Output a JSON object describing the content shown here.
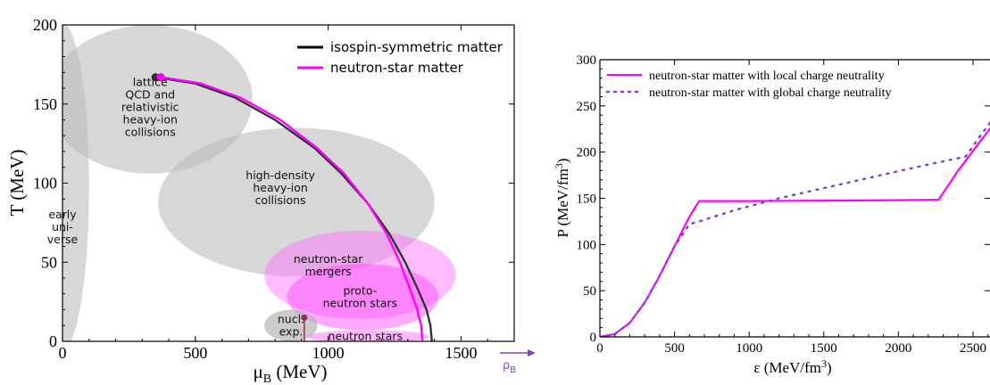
{
  "chart_data": [
    {
      "type": "line",
      "title": "",
      "xlabel": "μ",
      "xlabel_sub": "B",
      "xlabel_unit": " (MeV)",
      "ylabel": "T (MeV)",
      "xlim": [
        0,
        1700
      ],
      "ylim": [
        0,
        200
      ],
      "x_ticks": [
        "0",
        "500",
        "1000",
        "1500"
      ],
      "y_ticks": [
        "0",
        "50",
        "100",
        "150",
        "200"
      ],
      "arrow_label": "ρ",
      "arrow_label_sub": "B",
      "colors": {
        "isospin": "#000000",
        "neutron_star": "#ff00ff",
        "arrow": "#8a3cc8",
        "region_gray": "#c8c8c8",
        "region_pink": "#ff80ff"
      },
      "legend_position": "top-right",
      "series": [
        {
          "name": "isospin-symmetric matter",
          "x": [
            350,
            500,
            650,
            800,
            950,
            1050,
            1150,
            1230,
            1290,
            1340,
            1370,
            1385,
            1390
          ],
          "y": [
            167,
            163,
            154,
            140,
            122,
            106,
            87,
            68,
            50,
            32,
            20,
            10,
            0
          ]
        },
        {
          "name": "neutron-star matter",
          "x": [
            370,
            520,
            670,
            820,
            960,
            1060,
            1150,
            1220,
            1270,
            1310,
            1335,
            1350,
            1355
          ],
          "y": [
            167,
            163,
            154,
            140,
            122,
            106,
            87,
            68,
            50,
            32,
            20,
            10,
            0
          ]
        }
      ],
      "critical_points": [
        {
          "series": "isospin-symmetric matter",
          "x": 350,
          "y": 167
        },
        {
          "series": "neutron-star matter",
          "x": 370,
          "y": 167
        }
      ],
      "nuclear_point": {
        "x": 910,
        "y": 15
      },
      "regions": [
        {
          "label": "early uni- verse",
          "lines": [
            "early",
            "uni-",
            "verse"
          ],
          "fill": "gray",
          "cx": 0,
          "cy": 98,
          "rx": 100,
          "ry": 103
        },
        {
          "label": "lattice QCD and relativistic heavy-ion collisions",
          "lines": [
            "lattice",
            "QCD and",
            "relativistic",
            "heavy-ion",
            "collisions"
          ],
          "fill": "gray",
          "cx": 330,
          "cy": 153,
          "rx": 385,
          "ry": 47
        },
        {
          "label": "high-density heavy-ion collisions",
          "lines": [
            "high-density",
            "heavy-ion",
            "collisions"
          ],
          "fill": "gray",
          "cx": 880,
          "cy": 88,
          "rx": 520,
          "ry": 47
        },
        {
          "label": "neutron-star mergers",
          "lines": [
            "neutron-star",
            "mergers"
          ],
          "fill": "pink",
          "cx": 1120,
          "cy": 42,
          "rx": 360,
          "ry": 28
        },
        {
          "label": "proto- neutron stars",
          "lines": [
            "proto-",
            "neutron stars"
          ],
          "fill": "pinkdark",
          "cx": 1130,
          "cy": 28,
          "rx": 285,
          "ry": 21
        },
        {
          "label": "nucl. exp.",
          "lines": [
            "nucl.",
            "exp."
          ],
          "fill": "grayalt",
          "cx": 860,
          "cy": 10,
          "rx": 100,
          "ry": 10
        },
        {
          "label": "neutron stars",
          "lines": [
            "neutron stars"
          ],
          "fill": "pinkflat",
          "cx": 1150,
          "cy": 3,
          "rx": 230,
          "ry": 4
        }
      ]
    },
    {
      "type": "line",
      "title": "",
      "xlabel": "ε (MeV/fm",
      "xlabel_sup": "3",
      "xlabel_end": ")",
      "ylabel": "P (MeV/fm",
      "ylabel_sup": "3",
      "ylabel_end": ")",
      "xlim": [
        0,
        2700
      ],
      "ylim": [
        0,
        300
      ],
      "x_ticks": [
        "0",
        "500",
        "1000",
        "1500",
        "2000",
        "2500"
      ],
      "y_ticks": [
        "0",
        "50",
        "100",
        "150",
        "200",
        "250",
        "300"
      ],
      "legend_position": "top-left",
      "series": [
        {
          "name": "neutron-star matter with local charge neutrality",
          "style": "solid",
          "color": "#ff00ff",
          "x": [
            0,
            100,
            200,
            300,
            400,
            500,
            600,
            665,
            1000,
            1500,
            2000,
            2270,
            2400,
            2550,
            2700
          ],
          "y": [
            0,
            3,
            15,
            37,
            66,
            98,
            130,
            147,
            147,
            147.5,
            148,
            148.5,
            180,
            212,
            243
          ]
        },
        {
          "name": "neutron-star matter with global charge neutrality",
          "style": "dotted",
          "color": "#7b3fd1",
          "x": [
            0,
            100,
            200,
            300,
            400,
            500,
            600,
            665,
            900,
            1200,
            1500,
            1800,
            2100,
            2300,
            2450,
            2550,
            2700
          ],
          "y": [
            0,
            3,
            15,
            37,
            66,
            98,
            122,
            125,
            137,
            150,
            161,
            172,
            183,
            190,
            195,
            218,
            250
          ]
        }
      ]
    }
  ]
}
